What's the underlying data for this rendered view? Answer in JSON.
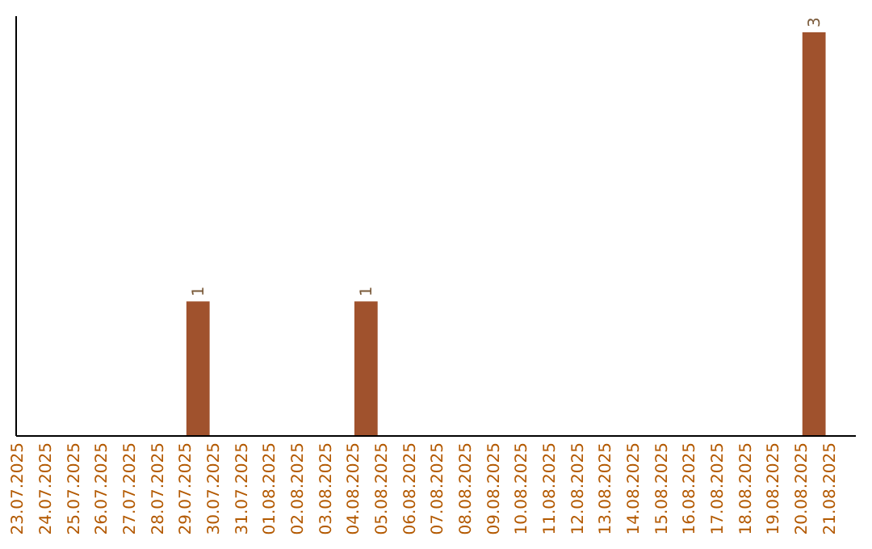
{
  "chart_data": {
    "type": "bar",
    "categories": [
      "23.07.2025",
      "24.07.2025",
      "25.07.2025",
      "26.07.2025",
      "27.07.2025",
      "28.07.2025",
      "29.07.2025",
      "30.07.2025",
      "31.07.2025",
      "01.08.2025",
      "02.08.2025",
      "03.08.2025",
      "04.08.2025",
      "05.08.2025",
      "06.08.2025",
      "07.08.2025",
      "08.08.2025",
      "09.08.2025",
      "10.08.2025",
      "11.08.2025",
      "12.08.2025",
      "13.08.2025",
      "14.08.2025",
      "15.08.2025",
      "16.08.2025",
      "17.08.2025",
      "18.08.2025",
      "19.08.2025",
      "20.08.2025",
      "21.08.2025"
    ],
    "values": [
      0,
      0,
      0,
      0,
      0,
      0,
      1,
      0,
      0,
      0,
      0,
      0,
      1,
      0,
      0,
      0,
      0,
      0,
      0,
      0,
      0,
      0,
      0,
      0,
      0,
      0,
      0,
      0,
      3,
      0
    ],
    "value_labels": [
      null,
      null,
      null,
      null,
      null,
      null,
      "1",
      null,
      null,
      null,
      null,
      null,
      "1",
      null,
      null,
      null,
      null,
      null,
      null,
      null,
      null,
      null,
      null,
      null,
      null,
      null,
      null,
      null,
      "3",
      null
    ],
    "color": "#a0522d"
  }
}
